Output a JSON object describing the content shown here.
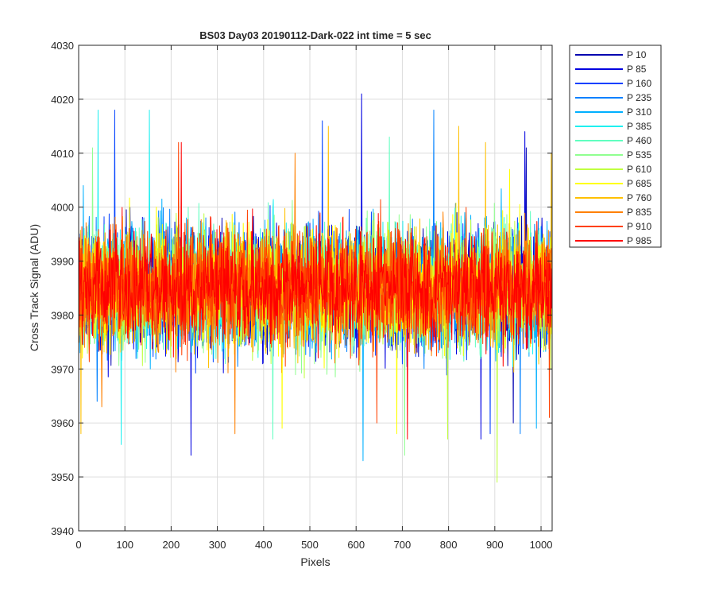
{
  "chart_data": {
    "type": "line",
    "title": "BS03 Day03 20190112-Dark-022 int time = 5 sec",
    "xlabel": "Pixels",
    "ylabel": "Cross Track Signal (ADU)",
    "xlim": [
      0,
      1024
    ],
    "ylim": [
      3940,
      4030
    ],
    "xticks": [
      0,
      100,
      200,
      300,
      400,
      500,
      600,
      700,
      800,
      900,
      1000
    ],
    "yticks": [
      3940,
      3950,
      3960,
      3970,
      3980,
      3990,
      4000,
      4010,
      4020,
      4030
    ],
    "xtick_labels": [
      "0",
      "100",
      "200",
      "300",
      "400",
      "500",
      "600",
      "700",
      "800",
      "900",
      "1000"
    ],
    "ytick_labels": [
      "3940",
      "3950",
      "3960",
      "3970",
      "3980",
      "3990",
      "4000",
      "4010",
      "4020",
      "4030"
    ],
    "grid": true,
    "legend_position": "outside-top-right",
    "noise": {
      "mean": 3985,
      "core_spread": 9,
      "typical_min": 3966,
      "typical_max": 4006
    },
    "series": [
      {
        "name": "P 10",
        "color": "#0000b0",
        "extremes": [
          {
            "x": 968,
            "y": 4011
          },
          {
            "x": 940,
            "y": 3960
          }
        ]
      },
      {
        "name": "P 85",
        "color": "#0000e0",
        "extremes": [
          {
            "x": 612,
            "y": 4021
          },
          {
            "x": 243,
            "y": 3954
          },
          {
            "x": 965,
            "y": 4014
          },
          {
            "x": 870,
            "y": 3957
          }
        ]
      },
      {
        "name": "P 160",
        "color": "#0040ff",
        "extremes": [
          {
            "x": 78,
            "y": 4018
          },
          {
            "x": 527,
            "y": 4016
          },
          {
            "x": 890,
            "y": 3958
          }
        ]
      },
      {
        "name": "P 235",
        "color": "#0080ff",
        "extremes": [
          {
            "x": 768,
            "y": 4018
          },
          {
            "x": 955,
            "y": 3958
          },
          {
            "x": 40,
            "y": 3964
          }
        ]
      },
      {
        "name": "P 310",
        "color": "#00b0ff",
        "extremes": [
          {
            "x": 615,
            "y": 3953
          },
          {
            "x": 990,
            "y": 3959
          },
          {
            "x": 10,
            "y": 4004
          }
        ]
      },
      {
        "name": "P 385",
        "color": "#20f0f0",
        "extremes": [
          {
            "x": 42,
            "y": 4018
          },
          {
            "x": 153,
            "y": 4018
          },
          {
            "x": 92,
            "y": 3956
          }
        ]
      },
      {
        "name": "P 460",
        "color": "#60ffc0",
        "extremes": [
          {
            "x": 672,
            "y": 4013
          },
          {
            "x": 420,
            "y": 3957
          }
        ]
      },
      {
        "name": "P 535",
        "color": "#90ff90",
        "extremes": [
          {
            "x": 705,
            "y": 3954
          },
          {
            "x": 30,
            "y": 4011
          }
        ]
      },
      {
        "name": "P 610",
        "color": "#c0ff40",
        "extremes": [
          {
            "x": 905,
            "y": 3949
          },
          {
            "x": 798,
            "y": 3957
          }
        ]
      },
      {
        "name": "P 685",
        "color": "#ffff00",
        "extremes": [
          {
            "x": 688,
            "y": 3958
          },
          {
            "x": 440,
            "y": 3959
          },
          {
            "x": 932,
            "y": 4007
          }
        ]
      },
      {
        "name": "P 760",
        "color": "#ffc000",
        "extremes": [
          {
            "x": 540,
            "y": 4015
          },
          {
            "x": 822,
            "y": 4015
          },
          {
            "x": 880,
            "y": 4012
          },
          {
            "x": 1022,
            "y": 4010
          },
          {
            "x": 5,
            "y": 3958
          }
        ]
      },
      {
        "name": "P 835",
        "color": "#ff8000",
        "extremes": [
          {
            "x": 468,
            "y": 4010
          },
          {
            "x": 338,
            "y": 3958
          },
          {
            "x": 50,
            "y": 3963
          }
        ]
      },
      {
        "name": "P 910",
        "color": "#ff4000",
        "extremes": [
          {
            "x": 216,
            "y": 4012
          },
          {
            "x": 1018,
            "y": 3961
          },
          {
            "x": 645,
            "y": 3960
          }
        ]
      },
      {
        "name": "P 985",
        "color": "#ff0000",
        "extremes": [
          {
            "x": 222,
            "y": 4012
          },
          {
            "x": 711,
            "y": 3957
          }
        ]
      }
    ]
  }
}
